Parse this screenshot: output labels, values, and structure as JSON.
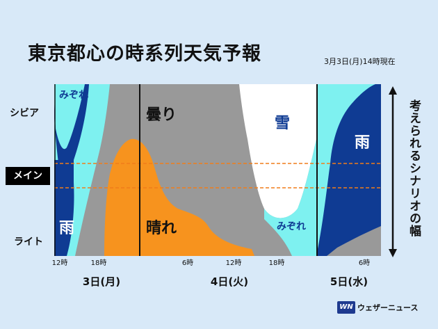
{
  "title": "東京都心の時系列天気予報",
  "timestamp": "3月3日(月)14時現在",
  "scenarios": {
    "severe": "シビア",
    "main": "メイン",
    "light": "ライト"
  },
  "scenario_axis_label": "考えられるシナリオの幅",
  "logo": {
    "mark": "WN",
    "text": "ウェザーニュース"
  },
  "colors": {
    "rain": "#0f3b93",
    "sleet": "#7ef1f0",
    "cloudy": "#999999",
    "sunny": "#f7931e",
    "snow": "#ffffff",
    "main_band_line": "#f07d1a"
  },
  "chart_data": {
    "type": "area",
    "title": "東京都心の時系列天気予報",
    "x_ticks": [
      "12時",
      "18時",
      "6時",
      "12時",
      "18時",
      "6時"
    ],
    "day_labels": [
      "3日(月)",
      "4日(火)",
      "5日(水)"
    ],
    "y_categories": [
      "シビア",
      "メイン",
      "ライト"
    ],
    "weather_labels": [
      "みぞれ",
      "雨",
      "曇り",
      "晴れ",
      "雪",
      "みぞれ",
      "雨"
    ],
    "series": [
      {
        "name": "雨",
        "values": []
      },
      {
        "name": "みぞれ",
        "values": []
      },
      {
        "name": "曇り",
        "values": []
      },
      {
        "name": "晴れ",
        "values": []
      },
      {
        "name": "雪",
        "values": []
      }
    ]
  }
}
